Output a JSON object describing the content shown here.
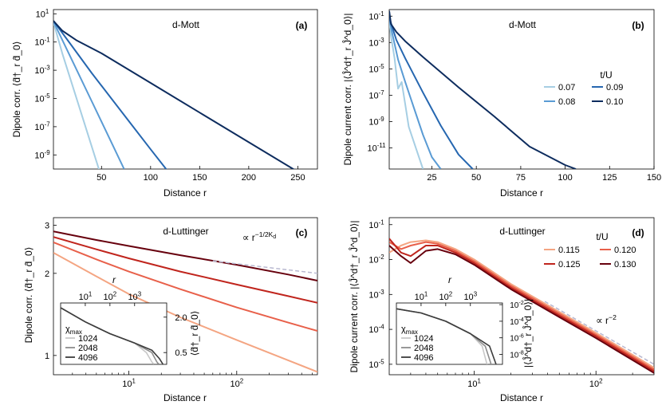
{
  "chart_data": [
    {
      "panel": "(a)",
      "type": "line",
      "title": "d-Mott",
      "xlabel": "Distance r",
      "ylabel": "Dipole corr. ⟨d̂†_r d̂_0⟩",
      "yscale": "log",
      "xlim": [
        1,
        270
      ],
      "ylim_exp": [
        -10,
        1.3
      ],
      "xticks": [
        50,
        100,
        150,
        200,
        250
      ],
      "yticks_exp": [
        1,
        -1,
        -3,
        -5,
        -7,
        -9
      ],
      "series": [
        {
          "name": "0.07",
          "color": "#a6cee3",
          "x": [
            1,
            10,
            20,
            30,
            40,
            50
          ],
          "y_exp": [
            0.4,
            -1.8,
            -4.0,
            -6.2,
            -8.4,
            -10.6
          ]
        },
        {
          "name": "0.08",
          "color": "#5a9bd4",
          "x": [
            1,
            20,
            40,
            60,
            73
          ],
          "y_exp": [
            0.45,
            -2.3,
            -5.2,
            -8.1,
            -10.0
          ]
        },
        {
          "name": "0.09",
          "color": "#2667b0",
          "x": [
            1,
            20,
            40,
            60,
            80,
            100,
            118
          ],
          "y_exp": [
            0.5,
            -1.3,
            -3.2,
            -5.0,
            -6.8,
            -8.6,
            -10.2
          ]
        },
        {
          "name": "0.10",
          "color": "#0d2c5e",
          "x": [
            1,
            10,
            25,
            50,
            100,
            150,
            200,
            262
          ],
          "y_exp": [
            0.5,
            -0.2,
            -0.9,
            -1.8,
            -3.9,
            -6.0,
            -8.1,
            -10.7
          ]
        }
      ]
    },
    {
      "panel": "(b)",
      "type": "line",
      "title": "d-Mott",
      "xlabel": "Distance r",
      "ylabel": "Dipole current corr. |⟨Ĵ^d†_r Ĵ^d_0⟩|",
      "yscale": "log",
      "xlim": [
        1,
        150
      ],
      "ylim_exp": [
        -12.6,
        -0.5
      ],
      "xticks": [
        25,
        50,
        75,
        100,
        125,
        150
      ],
      "yticks_exp": [
        -1,
        -3,
        -5,
        -7,
        -9,
        -11
      ],
      "legend_title": "t/U",
      "legend": [
        "0.07",
        "0.08",
        "0.09",
        "0.10"
      ],
      "series": [
        {
          "name": "0.07",
          "color": "#a6cee3",
          "x": [
            1,
            2,
            4,
            6,
            8,
            10,
            12,
            16,
            20
          ],
          "y_exp": [
            -1.3,
            -2.5,
            -4.2,
            -6.5,
            -6.0,
            -7.7,
            -9.4,
            -11.0,
            -12.6
          ]
        },
        {
          "name": "0.08",
          "color": "#5a9bd4",
          "x": [
            1,
            3,
            6,
            10,
            15,
            20,
            25,
            30
          ],
          "y_exp": [
            -1.2,
            -2.5,
            -4.3,
            -6.0,
            -8.0,
            -10.0,
            -11.7,
            -12.6
          ]
        },
        {
          "name": "0.09",
          "color": "#2667b0",
          "x": [
            1,
            5,
            10,
            20,
            30,
            40,
            48
          ],
          "y_exp": [
            -1.1,
            -2.8,
            -4.2,
            -6.8,
            -9.3,
            -11.5,
            -12.6
          ]
        },
        {
          "name": "0.10",
          "color": "#0d2c5e",
          "x": [
            1,
            2,
            5,
            10,
            20,
            40,
            60,
            80,
            100,
            106
          ],
          "y_exp": [
            -0.6,
            -1.6,
            -2.2,
            -2.9,
            -4.1,
            -6.4,
            -8.6,
            -10.9,
            -12.3,
            -12.6
          ]
        }
      ]
    },
    {
      "panel": "(c)",
      "type": "line",
      "title": "d-Luttinger",
      "xlabel": "Distance r",
      "ylabel": "Dipole corr. ⟨d̂†_r d̂_0⟩",
      "xscale": "log",
      "yscale": "log",
      "xlim": [
        2,
        560
      ],
      "ylim": [
        0.85,
        3.2
      ],
      "xticks": [
        "10^1",
        "10^2"
      ],
      "yticks": [
        1,
        2,
        3
      ],
      "annotation": "∝ r^(-1/2K_d)",
      "series": [
        {
          "name": "0.115",
          "color": "#f4a582",
          "x": [
            2,
            5,
            10,
            30,
            100,
            300,
            560
          ],
          "y": [
            2.38,
            1.95,
            1.68,
            1.38,
            1.14,
            0.96,
            0.87
          ]
        },
        {
          "name": "0.120",
          "color": "#e8604a",
          "x": [
            2,
            5,
            10,
            30,
            100,
            300,
            560
          ],
          "y": [
            2.6,
            2.25,
            2.03,
            1.75,
            1.5,
            1.32,
            1.23
          ]
        },
        {
          "name": "0.125",
          "color": "#c0251d",
          "x": [
            2,
            5,
            10,
            30,
            100,
            300,
            560
          ],
          "y": [
            2.72,
            2.45,
            2.27,
            2.03,
            1.82,
            1.65,
            1.56
          ]
        },
        {
          "name": "0.130",
          "color": "#67000d",
          "x": [
            2,
            5,
            10,
            30,
            100,
            300,
            560
          ],
          "y": [
            2.85,
            2.65,
            2.52,
            2.33,
            2.15,
            1.98,
            1.88
          ]
        }
      ],
      "inset": {
        "xlabel": "r",
        "ylabel": "⟨d̂†_r d̂_0⟩",
        "xticks": [
          "10^1",
          "10^2",
          "10^3"
        ],
        "yticks": [
          "2.0",
          "0.5"
        ],
        "legend_title": "χ_max",
        "series": [
          {
            "name": "1024",
            "color": "#c8c8c8",
            "x": [
              1,
              10,
              100,
              1000,
              3000,
              5000,
              6000
            ],
            "y": [
              2.4,
              1.8,
              1.3,
              0.9,
              0.5,
              0.1,
              0.01
            ]
          },
          {
            "name": "2048",
            "color": "#8c8c8c",
            "x": [
              1,
              10,
              100,
              1000,
              5000,
              8000,
              9500
            ],
            "y": [
              2.4,
              1.8,
              1.3,
              0.9,
              0.5,
              0.1,
              0.01
            ]
          },
          {
            "name": "4096",
            "color": "#3c3c3c",
            "x": [
              1,
              10,
              100,
              1000,
              5000,
              10000,
              14000
            ],
            "y": [
              2.4,
              1.8,
              1.3,
              0.9,
              0.6,
              0.25,
              0.01
            ]
          }
        ]
      }
    },
    {
      "panel": "(d)",
      "type": "line",
      "title": "d-Luttinger",
      "xlabel": "Distance r",
      "ylabel": "Dipole current corr. |⟨Ĵ^d†_r Ĵ^d_0⟩|",
      "xscale": "log",
      "yscale": "log",
      "xlim": [
        2,
        300
      ],
      "ylim_exp": [
        -5.3,
        -0.8
      ],
      "xticks": [
        "10^1",
        "10^2"
      ],
      "yticks_exp": [
        -1,
        -2,
        -3,
        -4,
        -5
      ],
      "legend_title": "t/U",
      "legend": [
        "0.115",
        "0.125",
        "0.120",
        "0.130"
      ],
      "annotation": "∝ r^(-2)",
      "series": [
        {
          "name": "0.115",
          "color": "#f4a582",
          "x": [
            2,
            2.5,
            3,
            4,
            5,
            7,
            10,
            20,
            50,
            100,
            300
          ],
          "y_exp": [
            -1.8,
            -1.6,
            -1.5,
            -1.45,
            -1.5,
            -1.7,
            -2.0,
            -2.7,
            -3.5,
            -4.1,
            -5.1
          ]
        },
        {
          "name": "0.120",
          "color": "#e8604a",
          "x": [
            2,
            2.5,
            3,
            4,
            5,
            7,
            10,
            20,
            50,
            100,
            300
          ],
          "y_exp": [
            -1.5,
            -1.7,
            -1.6,
            -1.5,
            -1.55,
            -1.75,
            -2.05,
            -2.75,
            -3.55,
            -4.15,
            -5.15
          ]
        },
        {
          "name": "0.125",
          "color": "#c0251d",
          "x": [
            2,
            2.5,
            3,
            4,
            5,
            7,
            10,
            20,
            50,
            100,
            300
          ],
          "y_exp": [
            -1.4,
            -1.8,
            -1.9,
            -1.6,
            -1.6,
            -1.8,
            -2.1,
            -2.8,
            -3.6,
            -4.2,
            -5.2
          ]
        },
        {
          "name": "0.130",
          "color": "#67000d",
          "x": [
            2,
            2.5,
            3,
            4,
            5,
            7,
            10,
            20,
            50,
            100,
            300
          ],
          "y_exp": [
            -1.6,
            -1.9,
            -2.1,
            -1.75,
            -1.7,
            -1.85,
            -2.15,
            -2.85,
            -3.65,
            -4.25,
            -5.25
          ]
        }
      ],
      "inset": {
        "xlabel": "r",
        "ylabel": "|⟨Ĵ^d†_r Ĵ^d_0⟩|",
        "xticks": [
          "10^1",
          "10^2",
          "10^3"
        ],
        "yticks_exp": [
          -2,
          -4,
          -6,
          -8
        ],
        "legend_title": "χ_max",
        "series": [
          {
            "name": "1024",
            "color": "#c8c8c8",
            "x": [
              1,
              10,
              100,
              1000,
              3000,
              5000
            ],
            "y_exp": [
              -2.5,
              -3.0,
              -4.0,
              -5.5,
              -7.0,
              -9.5
            ]
          },
          {
            "name": "2048",
            "color": "#8c8c8c",
            "x": [
              1,
              10,
              100,
              1000,
              4000,
              7500
            ],
            "y_exp": [
              -2.5,
              -3.0,
              -4.0,
              -5.5,
              -7.0,
              -9.5
            ]
          },
          {
            "name": "4096",
            "color": "#3c3c3c",
            "x": [
              1,
              10,
              100,
              1000,
              6000,
              12000
            ],
            "y_exp": [
              -2.5,
              -3.0,
              -4.0,
              -5.5,
              -7.0,
              -9.5
            ]
          }
        ]
      }
    }
  ],
  "labels": {
    "panel_a": "(a)",
    "panel_b": "(b)",
    "panel_c": "(c)",
    "panel_d": "(d)",
    "title_mott": "d-Mott",
    "title_lutt": "d-Luttinger",
    "distance": "Distance r",
    "tU": "t/U",
    "chi": "χmax"
  }
}
